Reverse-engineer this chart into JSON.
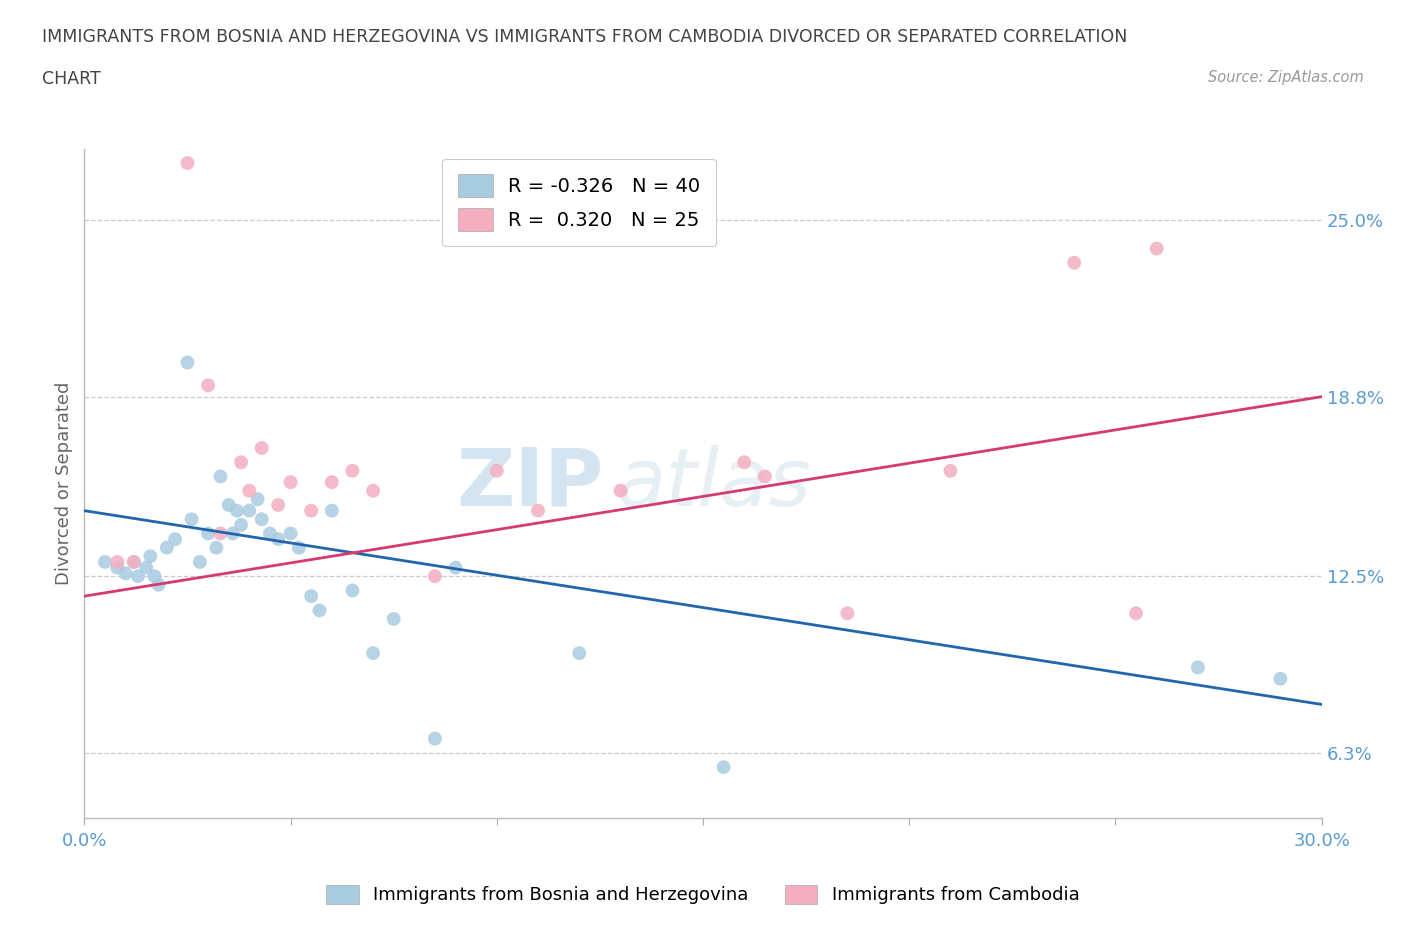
{
  "title_line1": "IMMIGRANTS FROM BOSNIA AND HERZEGOVINA VS IMMIGRANTS FROM CAMBODIA DIVORCED OR SEPARATED CORRELATION",
  "title_line2": "CHART",
  "source": "Source: ZipAtlas.com",
  "ylabel": "Divorced or Separated",
  "xlim": [
    0.0,
    0.3
  ],
  "ylim": [
    0.04,
    0.275
  ],
  "xticks": [
    0.0,
    0.05,
    0.1,
    0.15,
    0.2,
    0.25,
    0.3
  ],
  "xticklabels": [
    "0.0%",
    "",
    "",
    "",
    "",
    "",
    "30.0%"
  ],
  "ytick_positions": [
    0.063,
    0.125,
    0.188,
    0.25
  ],
  "ytick_labels": [
    "6.3%",
    "12.5%",
    "18.8%",
    "25.0%"
  ],
  "watermark_zip": "ZIP",
  "watermark_atlas": "atlas",
  "legend_label1": "R = -0.326   N = 40",
  "legend_label2": "R =  0.320   N = 25",
  "blue_color": "#a8cce0",
  "pink_color": "#f4aec0",
  "blue_line_color": "#2166ac",
  "pink_line_color": "#d63a72",
  "gridline_color": "#cccccc",
  "title_color": "#444444",
  "axis_label_color": "#666666",
  "tick_color": "#5b9bd5",
  "blue_scatter_x": [
    0.005,
    0.008,
    0.01,
    0.012,
    0.013,
    0.015,
    0.016,
    0.017,
    0.018,
    0.02,
    0.022,
    0.025,
    0.026,
    0.028,
    0.03,
    0.032,
    0.033,
    0.035,
    0.036,
    0.037,
    0.038,
    0.04,
    0.042,
    0.043,
    0.045,
    0.047,
    0.05,
    0.052,
    0.055,
    0.057,
    0.06,
    0.065,
    0.07,
    0.075,
    0.085,
    0.09,
    0.12,
    0.155,
    0.27,
    0.29
  ],
  "blue_scatter_y": [
    0.13,
    0.128,
    0.126,
    0.13,
    0.125,
    0.128,
    0.132,
    0.125,
    0.122,
    0.135,
    0.138,
    0.2,
    0.145,
    0.13,
    0.14,
    0.135,
    0.16,
    0.15,
    0.14,
    0.148,
    0.143,
    0.148,
    0.152,
    0.145,
    0.14,
    0.138,
    0.14,
    0.135,
    0.118,
    0.113,
    0.148,
    0.12,
    0.098,
    0.11,
    0.068,
    0.128,
    0.098,
    0.058,
    0.093,
    0.089
  ],
  "pink_scatter_x": [
    0.008,
    0.012,
    0.025,
    0.03,
    0.033,
    0.038,
    0.04,
    0.043,
    0.047,
    0.05,
    0.055,
    0.06,
    0.065,
    0.07,
    0.085,
    0.1,
    0.11,
    0.13,
    0.16,
    0.165,
    0.185,
    0.21,
    0.24,
    0.255,
    0.26
  ],
  "pink_scatter_y": [
    0.13,
    0.13,
    0.27,
    0.192,
    0.14,
    0.165,
    0.155,
    0.17,
    0.15,
    0.158,
    0.148,
    0.158,
    0.162,
    0.155,
    0.125,
    0.162,
    0.148,
    0.155,
    0.165,
    0.16,
    0.112,
    0.162,
    0.235,
    0.112,
    0.24
  ],
  "blue_trend_x": [
    0.0,
    0.3
  ],
  "blue_trend_y": [
    0.148,
    0.08
  ],
  "pink_trend_x": [
    0.0,
    0.3
  ],
  "pink_trend_y": [
    0.118,
    0.188
  ]
}
